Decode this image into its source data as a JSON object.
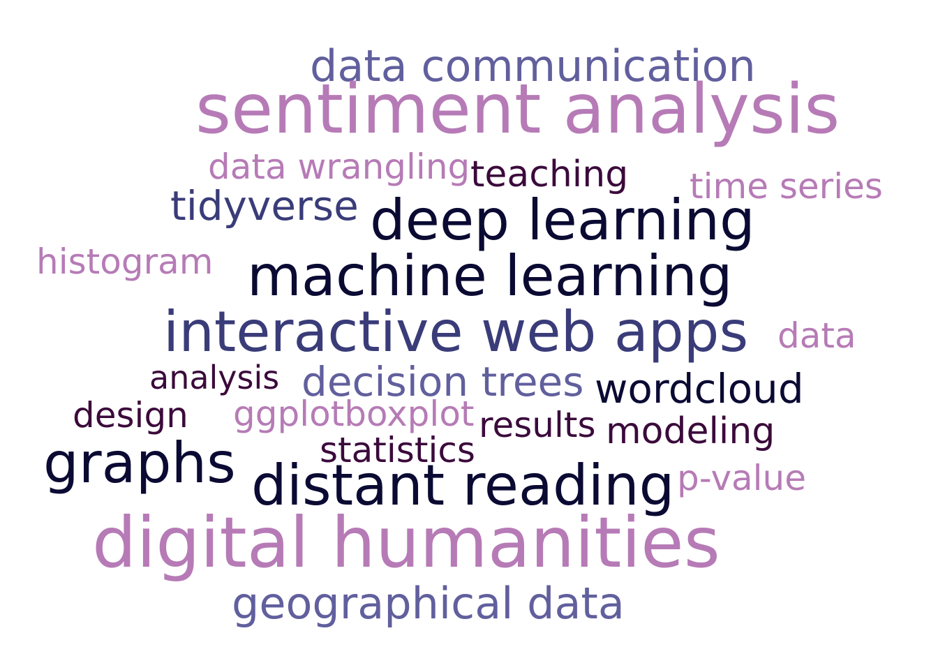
{
  "colors": {
    "pink": "#b67bb6",
    "purple": "#615f9d",
    "indigo": "#3a3c79",
    "navy": "#0a0a33",
    "plum": "#3b0a3b"
  },
  "words": [
    {
      "text": "data communication",
      "color": "purple"
    },
    {
      "text": "sentiment analysis",
      "color": "pink"
    },
    {
      "text": "data wrangling",
      "color": "pink"
    },
    {
      "text": "teaching",
      "color": "plum"
    },
    {
      "text": "time series",
      "color": "pink"
    },
    {
      "text": "tidyverse",
      "color": "indigo"
    },
    {
      "text": "deep learning",
      "color": "navy"
    },
    {
      "text": "histogram",
      "color": "pink"
    },
    {
      "text": "machine learning",
      "color": "navy"
    },
    {
      "text": "interactive web apps",
      "color": "indigo"
    },
    {
      "text": "data",
      "color": "pink"
    },
    {
      "text": "analysis",
      "color": "plum"
    },
    {
      "text": "decision trees",
      "color": "purple"
    },
    {
      "text": "wordcloud",
      "color": "navy"
    },
    {
      "text": "design",
      "color": "plum"
    },
    {
      "text": "ggplotboxplot",
      "color": "pink"
    },
    {
      "text": "results",
      "color": "plum"
    },
    {
      "text": "modeling",
      "color": "plum"
    },
    {
      "text": "statistics",
      "color": "plum"
    },
    {
      "text": "graphs",
      "color": "navy"
    },
    {
      "text": "distant reading",
      "color": "navy"
    },
    {
      "text": "p-value",
      "color": "pink"
    },
    {
      "text": "digital humanities",
      "color": "pink"
    },
    {
      "text": "geographical data",
      "color": "purple"
    }
  ]
}
